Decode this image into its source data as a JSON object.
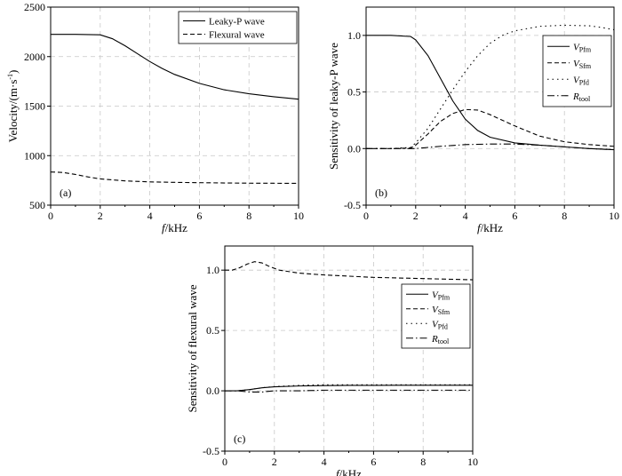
{
  "chart_data": [
    {
      "type": "line",
      "panel_label": "(a)",
      "xlabel": {
        "italic": "f",
        "rest": "/kHz"
      },
      "ylabel": "Velocity/(m·s",
      "ylabel_sup": "-1",
      "ylabel_end": ")",
      "xlim": [
        0,
        10
      ],
      "ylim": [
        500,
        2500
      ],
      "xticks": [
        0,
        2,
        4,
        6,
        8,
        10
      ],
      "yticks": [
        500,
        1000,
        1500,
        2000,
        2500
      ],
      "grid": true,
      "legend_position": "top-right",
      "series": [
        {
          "name": "Leaky-P wave",
          "dash": "solid",
          "x": [
            0,
            1,
            2,
            2.5,
            3,
            3.5,
            4,
            4.5,
            5,
            6,
            7,
            8,
            9,
            10
          ],
          "y": [
            2225,
            2225,
            2220,
            2180,
            2110,
            2030,
            1950,
            1880,
            1820,
            1730,
            1665,
            1625,
            1595,
            1570
          ]
        },
        {
          "name": "Flexural wave",
          "dash": "dashed",
          "x": [
            0,
            0.5,
            1,
            1.5,
            2,
            3,
            4,
            5,
            6,
            7,
            8,
            9,
            10
          ],
          "y": [
            835,
            830,
            810,
            785,
            765,
            745,
            735,
            730,
            727,
            724,
            722,
            721,
            720
          ]
        }
      ]
    },
    {
      "type": "line",
      "panel_label": "(b)",
      "xlabel": {
        "italic": "f",
        "rest": "/kHz"
      },
      "ylabel": "Sensitivity of leaky-P wave",
      "xlim": [
        0,
        10
      ],
      "ylim": [
        -0.5,
        1.25
      ],
      "xticks": [
        0,
        2,
        4,
        6,
        8,
        10
      ],
      "yticks": [
        -0.5,
        0.0,
        0.5,
        1.0
      ],
      "ytick_labels": [
        "-0.5",
        "0.0",
        "0.5",
        "1.0"
      ],
      "grid": true,
      "legend_position": "right",
      "series": [
        {
          "name": "V",
          "sub": "Pfm",
          "dash": "solid",
          "x": [
            0,
            1,
            1.8,
            2,
            2.5,
            3,
            3.5,
            4,
            4.5,
            5,
            6,
            7,
            8,
            9,
            10
          ],
          "y": [
            1.0,
            1.0,
            0.99,
            0.96,
            0.82,
            0.62,
            0.42,
            0.26,
            0.16,
            0.1,
            0.05,
            0.03,
            0.015,
            0.0,
            -0.01
          ]
        },
        {
          "name": "V",
          "sub": "Sfm",
          "dash": "dashed",
          "x": [
            0,
            1,
            1.8,
            2,
            2.5,
            3,
            3.5,
            4,
            4.5,
            5,
            6,
            7,
            8,
            9,
            10
          ],
          "y": [
            0.0,
            0.0,
            0.005,
            0.03,
            0.13,
            0.24,
            0.31,
            0.345,
            0.34,
            0.3,
            0.2,
            0.11,
            0.06,
            0.035,
            0.02
          ]
        },
        {
          "name": "V",
          "sub": "Pfd",
          "dash": "dotted",
          "x": [
            0,
            1,
            1.8,
            2,
            2.5,
            3,
            3.5,
            4,
            4.5,
            5,
            5.5,
            6,
            7,
            8,
            9,
            9.5,
            10
          ],
          "y": [
            0.0,
            0.0,
            0.01,
            0.05,
            0.18,
            0.35,
            0.52,
            0.68,
            0.82,
            0.93,
            1.0,
            1.04,
            1.08,
            1.09,
            1.085,
            1.07,
            1.05
          ]
        },
        {
          "name": "R",
          "sub": "tool",
          "dash": "dashdot",
          "x": [
            0,
            1,
            2,
            3,
            4,
            5,
            6,
            7,
            8,
            9,
            10
          ],
          "y": [
            0.0,
            0.0,
            0.0,
            0.02,
            0.035,
            0.04,
            0.04,
            0.03,
            0.015,
            0.0,
            -0.01
          ]
        }
      ]
    },
    {
      "type": "line",
      "panel_label": "(c)",
      "xlabel": {
        "italic": "f",
        "rest": "/kHz"
      },
      "ylabel": "Sensitivity of flexural wave",
      "xlim": [
        0,
        10
      ],
      "ylim": [
        -0.5,
        1.2
      ],
      "xticks": [
        0,
        2,
        4,
        6,
        8,
        10
      ],
      "yticks": [
        -0.5,
        0.0,
        0.5,
        1.0
      ],
      "ytick_labels": [
        "-0.5",
        "0.0",
        "0.5",
        "1.0"
      ],
      "grid": true,
      "legend_position": "right",
      "series": [
        {
          "name": "V",
          "sub": "Pfm",
          "dash": "solid",
          "x": [
            0,
            0.5,
            1,
            1.5,
            2,
            3,
            4,
            5,
            6,
            7,
            8,
            9,
            10
          ],
          "y": [
            0.0,
            0.0,
            0.01,
            0.025,
            0.033,
            0.04,
            0.043,
            0.045,
            0.045,
            0.046,
            0.046,
            0.046,
            0.046
          ]
        },
        {
          "name": "V",
          "sub": "Sfm",
          "dash": "dashed",
          "x": [
            0,
            0.3,
            0.6,
            0.9,
            1.2,
            1.5,
            1.8,
            2.2,
            3,
            4,
            5,
            6,
            7,
            8,
            9,
            10
          ],
          "y": [
            1.0,
            1.0,
            1.02,
            1.05,
            1.07,
            1.06,
            1.03,
            1.0,
            0.975,
            0.96,
            0.95,
            0.94,
            0.935,
            0.93,
            0.925,
            0.92
          ]
        },
        {
          "name": "V",
          "sub": "Pfd",
          "dash": "dotted",
          "x": [
            0,
            0.5,
            1,
            1.5,
            2,
            3,
            4,
            5,
            6,
            7,
            8,
            9,
            10
          ],
          "y": [
            0.0,
            0.0,
            0.01,
            0.025,
            0.035,
            0.045,
            0.05,
            0.05,
            0.05,
            0.05,
            0.05,
            0.05,
            0.05
          ]
        },
        {
          "name": "R",
          "sub": "tool",
          "dash": "dashdot",
          "x": [
            0,
            0.5,
            1,
            1.5,
            2,
            3,
            4,
            5,
            6,
            7,
            8,
            9,
            10
          ],
          "y": [
            0.0,
            0.0,
            -0.01,
            -0.01,
            0.0,
            0.0,
            0.005,
            0.005,
            0.005,
            0.005,
            0.005,
            0.005,
            0.005
          ]
        }
      ]
    }
  ]
}
